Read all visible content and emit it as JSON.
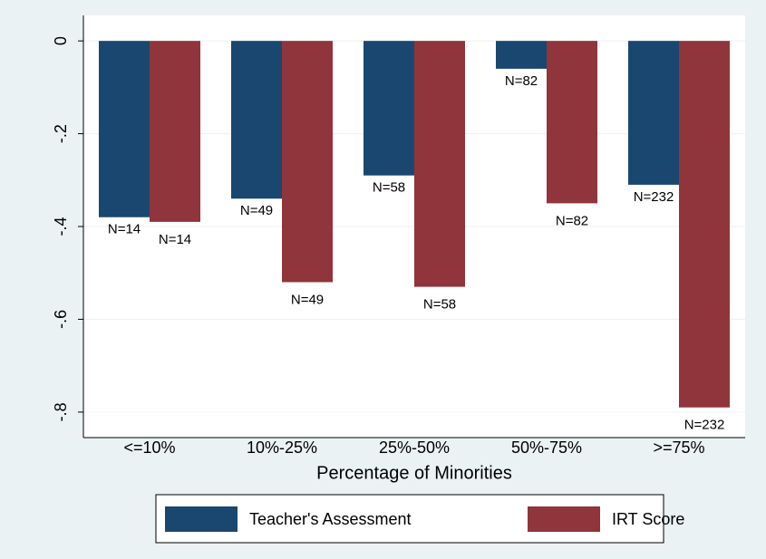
{
  "chart_data": {
    "type": "bar",
    "x_label": "Percentage of Minorities",
    "categories": [
      "<=10%",
      "10%-25%",
      "25%-50%",
      "50%-75%",
      ">=75%"
    ],
    "series": [
      {
        "name": "Teacher's Assessment",
        "color": "#1a476f",
        "values": [
          -0.38,
          -0.34,
          -0.29,
          -0.06,
          -0.31
        ],
        "labels": [
          "N=14",
          "N=49",
          "N=58",
          "N=82",
          "N=232"
        ]
      },
      {
        "name": "IRT Score",
        "color": "#90353b",
        "values": [
          -0.39,
          -0.52,
          -0.53,
          -0.35,
          -0.79
        ],
        "labels": [
          "N=14",
          "N=49",
          "N=58",
          "N=82",
          "N=232"
        ]
      }
    ],
    "ylim": [
      -0.855,
      0.055
    ],
    "yticks": [
      0,
      {
        "value": -0.2,
        "label": "-.2"
      },
      {
        "value": -0.4,
        "label": "-.4"
      },
      {
        "value": -0.6,
        "label": "-.6"
      },
      {
        "value": -0.8,
        "label": "-.8"
      }
    ],
    "grid": true
  }
}
